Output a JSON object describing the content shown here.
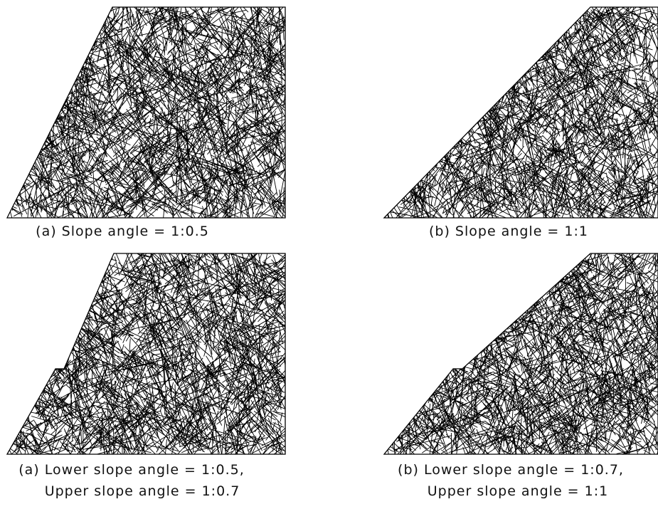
{
  "panels": [
    {
      "caption": [
        "(a) Slope angle = 1:0.5"
      ]
    },
    {
      "caption": [
        "(b) Slope angle = 1:1"
      ]
    },
    {
      "caption": [
        "(a) Lower slope angle = 1:0.5,",
        "Upper slope angle = 1:0.7"
      ]
    },
    {
      "caption": [
        "(b) Lower slope angle = 1:0.7,",
        "Upper slope angle = 1:1"
      ]
    }
  ]
}
